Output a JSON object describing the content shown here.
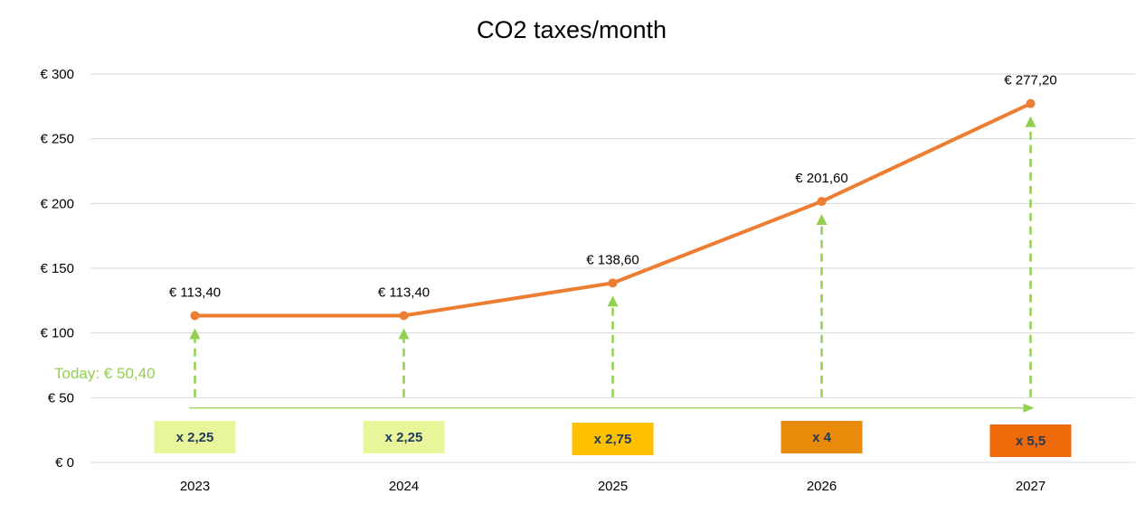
{
  "chart_data": {
    "type": "line",
    "title": "CO2 taxes/month",
    "xlabel": "",
    "ylabel": "",
    "categories": [
      "2023",
      "2024",
      "2025",
      "2026",
      "2027"
    ],
    "values": [
      113.4,
      113.4,
      138.6,
      201.6,
      277.2
    ],
    "data_labels": [
      "€ 113,40",
      "€ 113,40",
      "€ 138,60",
      "€ 201,60",
      "€ 277,20"
    ],
    "ylim": [
      0,
      300
    ],
    "yticks": [
      0,
      50,
      100,
      150,
      200,
      250,
      300
    ],
    "ytick_labels": [
      "€ 0",
      "€ 50",
      "€ 100",
      "€ 150",
      "€ 200",
      "€ 250",
      "€ 300"
    ],
    "grid": true,
    "legend": "none",
    "line_color": "#ED7D31",
    "baseline": {
      "label": "Today: € 50,40",
      "value": 50.4,
      "color": "#92D050"
    },
    "multipliers": [
      {
        "label": "x 2,25",
        "color": "#E8F59A"
      },
      {
        "label": "x 2,25",
        "color": "#E8F59A"
      },
      {
        "label": "x 2,75",
        "color": "#FFC000"
      },
      {
        "label": "x 4",
        "color": "#EA8A0A"
      },
      {
        "label": "x 5,5",
        "color": "#EE6A0A"
      }
    ]
  }
}
